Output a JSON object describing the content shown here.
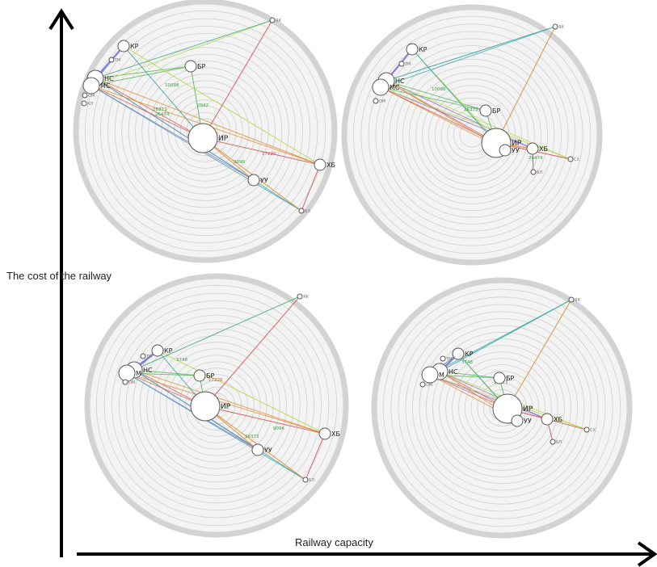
{
  "axes": {
    "y_label": "The cost of the railway",
    "x_label": "Railway capacity"
  },
  "colors": {
    "ring_outer": "#d3d3d3",
    "ring": "#d0d0d0",
    "disc": "#f3f3f3",
    "node_stroke": "#555555",
    "edge_blue": "#3a7bd5",
    "edge_green": "#5cb85c",
    "edge_red": "#d9534f",
    "edge_orange": "#e08a2b",
    "edge_purple": "#8a6bd1",
    "edge_lime": "#b6d94c",
    "edge_teal": "#3aa6a6",
    "label_green": "#3c9a3c",
    "label_red": "#d04a4a"
  },
  "panels": [
    {
      "id": "top-left",
      "nodes": [
        {
          "label": "КР",
          "size": "m"
        },
        {
          "label": "БР",
          "size": "m"
        },
        {
          "label": "НС",
          "size": "l"
        },
        {
          "label": "МС",
          "size": "l"
        },
        {
          "label": "ИР",
          "size": "xl"
        },
        {
          "label": "ХБ",
          "size": "m"
        },
        {
          "label": "УУ",
          "size": "m"
        },
        {
          "label": "ЯК",
          "size": "s"
        },
        {
          "label": "БЛ",
          "size": "s"
        },
        {
          "label": "ТМ",
          "size": "s"
        },
        {
          "label": "ОМ",
          "size": "s"
        },
        {
          "label": "КЛ",
          "size": "s"
        }
      ],
      "edge_labels": [
        "10098",
        "2842",
        "17220",
        "9096",
        "26373",
        "26474"
      ]
    },
    {
      "id": "top-right",
      "nodes": [
        {
          "label": "КР",
          "size": "m"
        },
        {
          "label": "БР",
          "size": "m"
        },
        {
          "label": "НС",
          "size": "l"
        },
        {
          "label": "МС",
          "size": "l"
        },
        {
          "label": "ИР",
          "size": "xl"
        },
        {
          "label": "УУ",
          "size": "m"
        },
        {
          "label": "ХБ",
          "size": "m"
        },
        {
          "label": "СХ",
          "size": "s"
        },
        {
          "label": "ЯК",
          "size": "s"
        },
        {
          "label": "БЛ",
          "size": "s"
        },
        {
          "label": "ТМ",
          "size": "s"
        },
        {
          "label": "ОМ",
          "size": "s"
        }
      ],
      "edge_labels": [
        "10098",
        "26373",
        "26474"
      ]
    },
    {
      "id": "bottom-left",
      "nodes": [
        {
          "label": "КР",
          "size": "m"
        },
        {
          "label": "БР",
          "size": "m"
        },
        {
          "label": "НС",
          "size": "l"
        },
        {
          "label": "М",
          "size": "l"
        },
        {
          "label": "ИР",
          "size": "xl"
        },
        {
          "label": "ХБ",
          "size": "m"
        },
        {
          "label": "УУ",
          "size": "m"
        },
        {
          "label": "ЯК",
          "size": "s"
        },
        {
          "label": "БЛ",
          "size": "s"
        },
        {
          "label": "ТМ",
          "size": "s"
        },
        {
          "label": "ОМ",
          "size": "s"
        }
      ],
      "edge_labels": [
        "3748",
        "17220",
        "9096",
        "26373"
      ]
    },
    {
      "id": "bottom-right",
      "nodes": [
        {
          "label": "КР",
          "size": "m"
        },
        {
          "label": "БР",
          "size": "m"
        },
        {
          "label": "НС",
          "size": "l"
        },
        {
          "label": "М",
          "size": "l"
        },
        {
          "label": "ИР",
          "size": "xl"
        },
        {
          "label": "УУ",
          "size": "m"
        },
        {
          "label": "ХБ",
          "size": "m"
        },
        {
          "label": "СХ",
          "size": "s"
        },
        {
          "label": "ЯК",
          "size": "s"
        },
        {
          "label": "БЛ",
          "size": "s"
        },
        {
          "label": "ТМ",
          "size": "s"
        },
        {
          "label": "ОМ",
          "size": "s"
        }
      ],
      "edge_labels": [
        "3748",
        "26373"
      ]
    }
  ]
}
